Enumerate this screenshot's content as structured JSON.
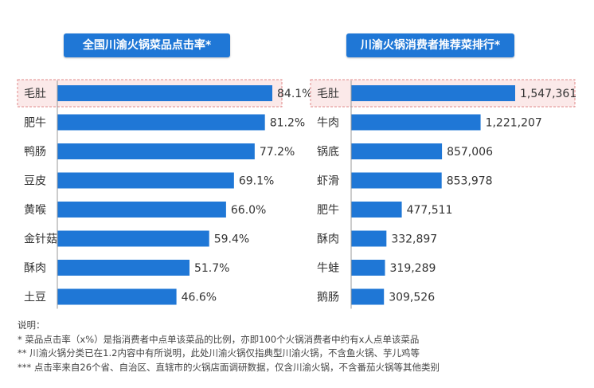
{
  "chart_data": [
    {
      "type": "bar",
      "orientation": "horizontal",
      "title": "全国川渝火锅菜品点击率*",
      "categories": [
        "毛肚",
        "肥牛",
        "鸭肠",
        "豆皮",
        "黄喉",
        "金针菇",
        "酥肉",
        "土豆"
      ],
      "values": [
        84.1,
        81.2,
        77.2,
        69.1,
        66.0,
        59.4,
        51.7,
        46.6
      ],
      "value_labels": [
        "84.1%",
        "81.2%",
        "77.2%",
        "69.1%",
        "66.0%",
        "59.4%",
        "51.7%",
        "46.6%"
      ],
      "highlight_index": 0,
      "bar_color": "#1f77d6"
    },
    {
      "type": "bar",
      "orientation": "horizontal",
      "title": "川渝火锅消费者推荐菜排行*",
      "categories": [
        "毛肚",
        "牛肉",
        "锅底",
        "虾滑",
        "肥牛",
        "酥肉",
        "牛蛙",
        "鹅肠"
      ],
      "values": [
        1547361,
        1221207,
        857006,
        853978,
        477511,
        332897,
        319289,
        309526
      ],
      "value_labels": [
        "1,547,361",
        "1,221,207",
        "857,006",
        "853,978",
        "477,511",
        "332,897",
        "319,289",
        "309,526"
      ],
      "highlight_index": 0,
      "bar_color": "#1f77d6"
    }
  ],
  "colors": {
    "bar": "#1f77d6",
    "highlight_fill": "#fbe9e9",
    "highlight_border": "#e08a8a",
    "axis": "#999999"
  },
  "notes": {
    "heading": "说明：",
    "lines": [
      "* 菜品点击率（x%）是指消费者中点单该菜品的比例，亦即100个火锅消费者中约有x人点单该菜品",
      "** 川渝火锅分类已在1.2内容中有所说明，此处川渝火锅仅指典型川渝火锅，不含鱼火锅、芋儿鸡等",
      "*** 点击率来自26个省、自治区、直辖市的火锅店面调研数据，仅含川渝火锅，不含番茄火锅等其他类别"
    ]
  }
}
